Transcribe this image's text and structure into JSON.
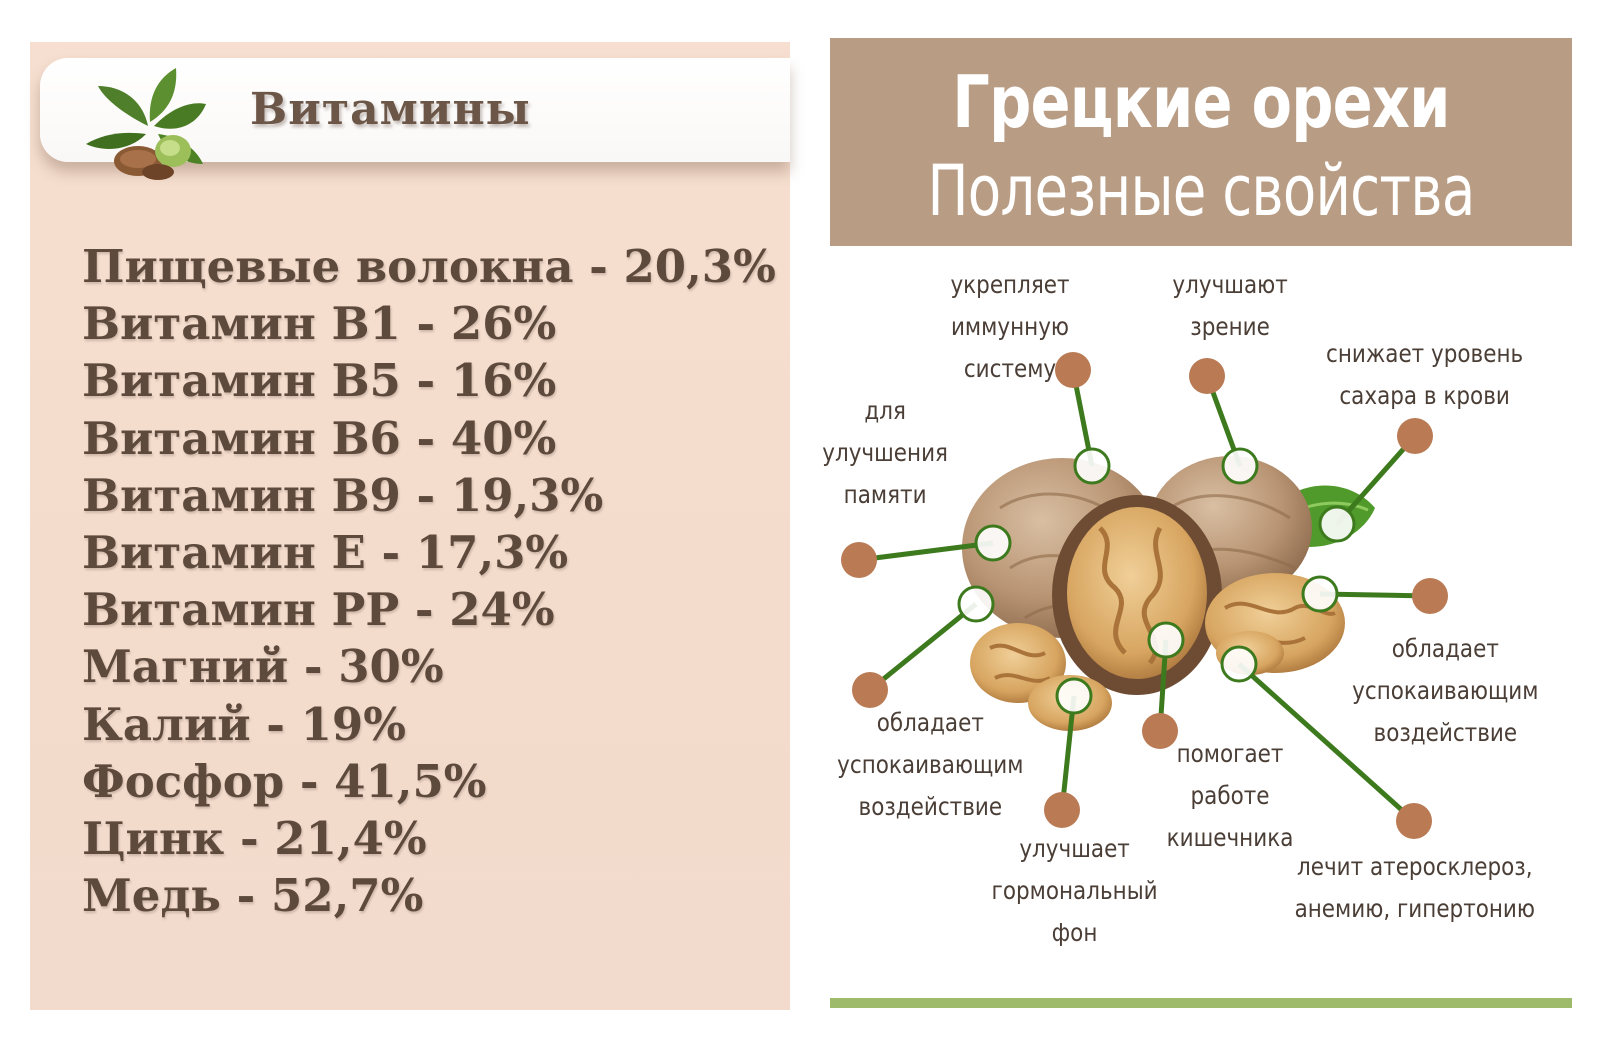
{
  "left": {
    "title": "Витамины",
    "logo_icon": "walnut-leaves-icon",
    "items": [
      "Пищевые волокна - 20,3%",
      "Витамин В1 - 26%",
      "Витамин В5 - 16%",
      "Витамин В6 - 40%",
      "Витамин В9 - 19,3%",
      "Витамин Е - 17,3%",
      "Витамин РР - 24%",
      "Магний - 30%",
      "Калий - 19%",
      "Фосфор - 41,5%",
      "Цинк - 21,4%",
      "Медь - 52,7%"
    ],
    "colors": {
      "background": "#f4dccc",
      "text": "#5e4a3c",
      "header": "#ffffff"
    }
  },
  "right": {
    "title_line1": "Грецкие орехи",
    "title_line2": "Полезные свойства",
    "benefits": [
      "укрепляет\nиммунную систему",
      "улучшают\nзрение",
      "снижает уровень\nсахара в крови",
      "для\nулучшения\nпамяти",
      "обладает\nуспокаивающим\nвоздействие",
      "обладает\nуспокаивающим\nвоздействие",
      "помогает\nработе кишечника",
      "улучшает\nгормональный\nфон",
      "лечит атеросклероз,\nанемию, гипертонию"
    ],
    "illustration_icon": "walnuts-illustration",
    "colors": {
      "title_box": "#b89c84",
      "dot": "#b97a54",
      "line": "#3d7a1e",
      "rule": "#9dbb6b"
    }
  }
}
